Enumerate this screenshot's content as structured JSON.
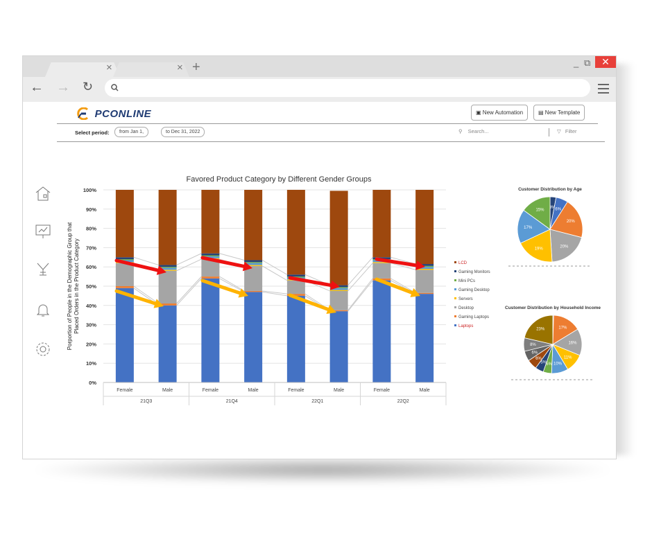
{
  "browser": {
    "tab_close_glyph": "×",
    "new_tab_glyph": "+",
    "window_controls": {
      "minimize": "_",
      "restore": "⧉",
      "close": "✕"
    }
  },
  "header": {
    "logo_text": "PCONLINE",
    "new_automation_label": "New Automation",
    "new_template_label": "New Template"
  },
  "filters": {
    "period_label": "Select period:",
    "from_value": "from Jan 1,",
    "to_value": "to Dec 31, 2022",
    "search_placeholder": "Search...",
    "filter_label": "Filter"
  },
  "sidebar": {
    "icons": [
      "home-icon",
      "presentation-icon",
      "antenna-icon",
      "bell-icon",
      "gear-icon"
    ]
  },
  "colors": {
    "laptops": "#4472c4",
    "gaming_laptops": "#ed7d31",
    "desktop": "#a5a5a5",
    "servers": "#ffc000",
    "gaming_desktop": "#5b9bd5",
    "mini_pc": "#70ad47",
    "gaming_monitors": "#264478",
    "lcd": "#9e480e",
    "arrow_red": "#ee1111",
    "arrow_yellow": "#ffb300"
  },
  "chart_data": [
    {
      "type": "bar",
      "stacked": true,
      "percent": true,
      "title": "Favored Product Category by Different Gender Groups",
      "ylabel": "Porportion of People in the Demographic Group that Placed Orders in the Product Category",
      "ylim": [
        0,
        100
      ],
      "yticks": [
        "0%",
        "10%",
        "20%",
        "30%",
        "40%",
        "50%",
        "60%",
        "70%",
        "80%",
        "90%",
        "100%"
      ],
      "categories": [
        "Female",
        "Male",
        "Female",
        "Male",
        "Female",
        "Male",
        "Female",
        "Male"
      ],
      "groups": [
        "21Q3",
        "21Q4",
        "22Q1",
        "22Q2"
      ],
      "series": [
        {
          "name": "Laptops",
          "values": [
            49,
            40,
            54,
            47,
            45,
            37,
            53,
            46
          ]
        },
        {
          "name": "Gaming Laptops",
          "values": [
            1,
            1,
            1,
            0.5,
            1,
            0.5,
            1,
            0.5
          ]
        },
        {
          "name": "Desktop",
          "values": [
            12,
            17,
            9,
            13,
            7,
            10,
            8,
            12
          ]
        },
        {
          "name": "Servers",
          "values": [
            0.5,
            0.5,
            0.5,
            0.5,
            0.5,
            0.5,
            0.5,
            0.5
          ]
        },
        {
          "name": "Gaming Desktop",
          "values": [
            1,
            1,
            1,
            1,
            1,
            1,
            1,
            1
          ]
        },
        {
          "name": "Mini PCs",
          "values": [
            0.5,
            0.5,
            0.5,
            0.5,
            0.5,
            0.5,
            0.5,
            0.5
          ]
        },
        {
          "name": "Gaming Monitors",
          "values": [
            1,
            1,
            1,
            1,
            1,
            1,
            1,
            1
          ]
        },
        {
          "name": "LCD",
          "values": [
            35,
            39,
            33,
            36.5,
            44,
            49,
            35,
            38.5
          ]
        }
      ],
      "legend": [
        "LCD",
        "Gaming Monitors",
        "Mini PCs",
        "Gaming Desktop",
        "Servers",
        "Desktop",
        "Gaming Laptops",
        "Laptops"
      ],
      "legend_position": "right"
    },
    {
      "type": "pie",
      "title": "Customer Distribution by Age",
      "values": [
        3,
        6,
        20,
        20,
        19,
        17,
        15
      ],
      "labels": [
        "3%",
        "6%",
        "20%",
        "20%",
        "19%",
        "17%",
        "15%"
      ],
      "colors": [
        "#264478",
        "#4472c4",
        "#ed7d31",
        "#a5a5a5",
        "#ffc000",
        "#5b9bd5",
        "#70ad47"
      ],
      "legend_position": "bottom"
    },
    {
      "type": "pie",
      "title": "Customer Distribution by Household Income",
      "values": [
        0.5,
        17,
        16,
        11,
        10,
        5,
        5,
        6,
        6,
        8,
        23
      ],
      "labels": [
        "0%",
        "17%",
        "16%",
        "11%",
        "10%",
        "5%",
        "5%",
        "6%",
        "6%",
        "8%",
        "23%"
      ],
      "colors": [
        "#4472c4",
        "#ed7d31",
        "#a5a5a5",
        "#ffc000",
        "#5b9bd5",
        "#70ad47",
        "#264478",
        "#9e480e",
        "#636363",
        "#7f7f7f",
        "#997300"
      ],
      "legend_position": "bottom"
    }
  ]
}
